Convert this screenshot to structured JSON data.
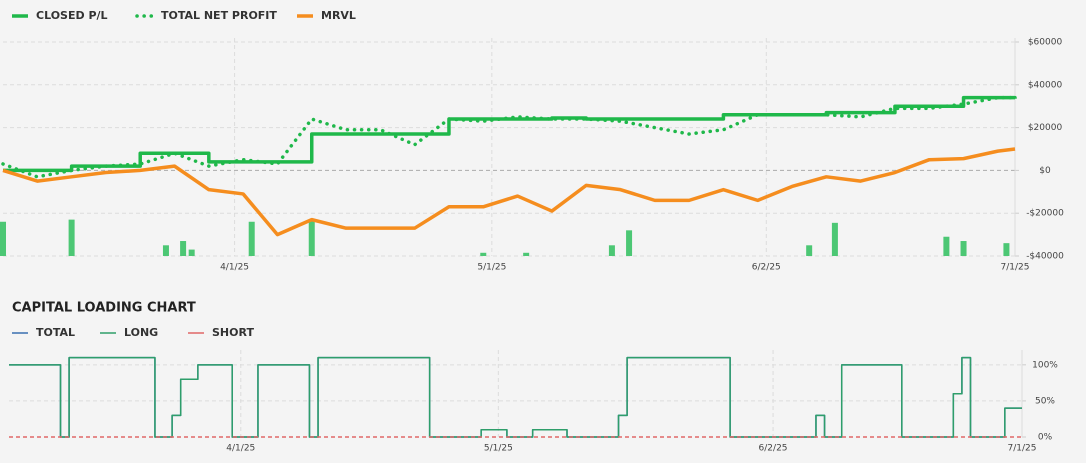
{
  "chart_data": [
    {
      "type": "line",
      "x": [
        "3/5/25",
        "3/9/25",
        "3/13/25",
        "3/17/25",
        "3/21/25",
        "3/25/25",
        "3/29/25",
        "4/2/25",
        "4/6/25",
        "4/10/25",
        "4/14/25",
        "4/18/25",
        "4/22/25",
        "4/26/25",
        "4/30/25",
        "5/4/25",
        "5/8/25",
        "5/12/25",
        "5/16/25",
        "5/20/25",
        "5/24/25",
        "5/28/25",
        "6/1/25",
        "6/5/25",
        "6/9/25",
        "6/13/25",
        "6/17/25",
        "6/21/25",
        "6/25/25",
        "6/29/25",
        "7/1/25"
      ],
      "series": [
        {
          "name": "CLOSED P/L",
          "color": "#1fb84a",
          "step": true,
          "style": "solid",
          "values": [
            0,
            0,
            2000,
            2000,
            8000,
            8000,
            4000,
            4000,
            4000,
            17000,
            17000,
            17000,
            17000,
            24000,
            24000,
            24000,
            24500,
            24000,
            24000,
            24000,
            24000,
            26000,
            26000,
            26000,
            27000,
            27000,
            30000,
            30000,
            34000,
            34000,
            33500
          ]
        },
        {
          "name": "TOTAL NET PROFIT",
          "color": "#1fb84a",
          "step": false,
          "style": "dotted",
          "values": [
            3000,
            -3000,
            0,
            2000,
            3000,
            8000,
            2000,
            5000,
            3000,
            24000,
            19000,
            19000,
            12000,
            24000,
            23000,
            25000,
            24000,
            24000,
            23000,
            20000,
            17000,
            19000,
            26000,
            26000,
            26000,
            25000,
            29000,
            29000,
            31000,
            34000,
            34000
          ]
        },
        {
          "name": "MRVL",
          "color": "#f58d1e",
          "step": false,
          "style": "solid",
          "values": [
            0,
            -5000,
            -3000,
            -1000,
            0,
            2000,
            -9000,
            -11000,
            -30000,
            -23000,
            -27000,
            -27000,
            -27000,
            -17000,
            -17000,
            -12000,
            -19000,
            -7000,
            -9000,
            -14000,
            -14000,
            -9000,
            -14000,
            -7500,
            -3000,
            -5000,
            -1000,
            5000,
            5500,
            9000,
            10000
          ]
        }
      ],
      "bars": {
        "color": "#4cc774",
        "x": [
          "3/5/25",
          "3/13/25",
          "3/24/25",
          "3/26/25",
          "3/27/25",
          "4/3/25",
          "4/10/25",
          "4/30/25",
          "5/5/25",
          "5/15/25",
          "5/17/25",
          "6/7/25",
          "6/10/25",
          "6/23/25",
          "6/25/25",
          "6/30/25"
        ],
        "values": [
          -24000,
          -23000,
          -35000,
          -33000,
          -37000,
          -24000,
          -23000,
          -38500,
          -38500,
          -35000,
          -28000,
          -35000,
          -24500,
          -31000,
          -33000,
          -34000
        ]
      },
      "xlim": [
        "3/5/25",
        "7/1/25"
      ],
      "xticks": [
        "4/1/25",
        "5/1/25",
        "6/2/25",
        "7/1/25"
      ],
      "ylim": [
        -40000,
        60000
      ],
      "yticks": [
        {
          "value": 60000,
          "label": "$60000"
        },
        {
          "value": 40000,
          "label": "$40000"
        },
        {
          "value": 20000,
          "label": "$20000"
        },
        {
          "value": 0,
          "label": "$0"
        },
        {
          "value": -20000,
          "label": "-$20000"
        },
        {
          "value": -40000,
          "label": "-$40000"
        }
      ],
      "grid": true
    },
    {
      "type": "line",
      "title": "CAPITAL LOADING CHART",
      "x": [
        "3/5/25",
        "3/11/25",
        "3/12/25",
        "3/22/25",
        "3/24/25",
        "3/25/25",
        "3/27/25",
        "3/31/25",
        "4/3/25",
        "4/9/25",
        "4/10/25",
        "4/23/25",
        "4/29/25",
        "5/2/25",
        "5/5/25",
        "5/9/25",
        "5/15/25",
        "5/16/25",
        "5/28/25",
        "6/7/25",
        "6/8/25",
        "6/10/25",
        "6/17/25",
        "6/23/25",
        "6/24/25",
        "6/25/25",
        "6/29/25",
        "7/1/25"
      ],
      "series": [
        {
          "name": "TOTAL",
          "color": "#3a6fb0",
          "step": true,
          "style": "solid",
          "values": [
            100,
            0,
            110,
            0,
            30,
            80,
            100,
            0,
            100,
            0,
            110,
            0,
            10,
            0,
            10,
            0,
            30,
            110,
            0,
            30,
            0,
            100,
            0,
            60,
            110,
            0,
            40,
            40
          ]
        },
        {
          "name": "LONG",
          "color": "#2e9e6a",
          "step": true,
          "style": "solid",
          "values": [
            100,
            0,
            110,
            0,
            30,
            80,
            100,
            0,
            100,
            0,
            110,
            0,
            10,
            0,
            10,
            0,
            30,
            110,
            0,
            30,
            0,
            100,
            0,
            60,
            110,
            0,
            40,
            40
          ]
        },
        {
          "name": "SHORT",
          "color": "#e06666",
          "step": true,
          "style": "dashed",
          "values": [
            0,
            0,
            0,
            0,
            0,
            0,
            0,
            0,
            0,
            0,
            0,
            0,
            0,
            0,
            0,
            0,
            0,
            0,
            0,
            0,
            0,
            0,
            0,
            0,
            0,
            0,
            0,
            0
          ]
        }
      ],
      "xlim": [
        "3/5/25",
        "7/1/25"
      ],
      "xticks": [
        "4/1/25",
        "5/1/25",
        "6/2/25",
        "7/1/25"
      ],
      "ylim": [
        0,
        115
      ],
      "yticks": [
        {
          "value": 100,
          "label": "100%"
        },
        {
          "value": 50,
          "label": "50%"
        },
        {
          "value": 0,
          "label": "0%"
        }
      ],
      "grid": true
    }
  ]
}
